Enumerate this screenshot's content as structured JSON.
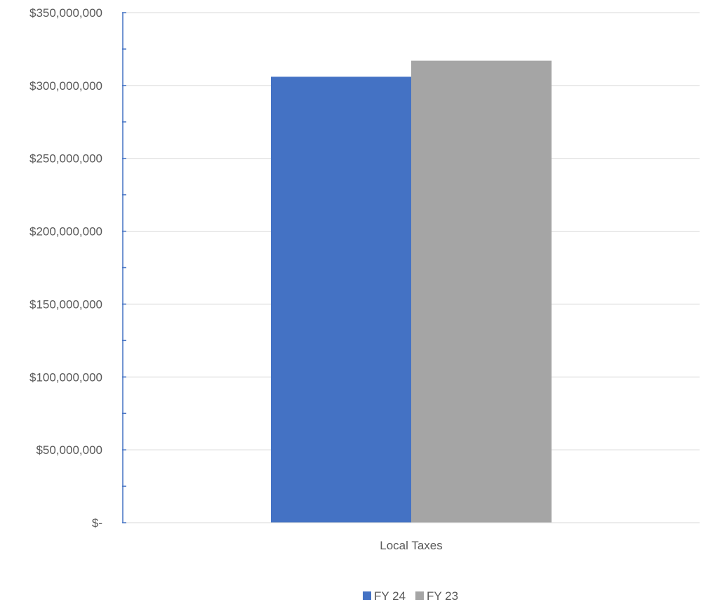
{
  "chart_data": {
    "type": "bar",
    "categories": [
      "Local Taxes"
    ],
    "series": [
      {
        "name": "FY 24",
        "values": [
          306000000
        ],
        "color": "#4472C4"
      },
      {
        "name": "FY 23",
        "values": [
          317000000
        ],
        "color": "#A5A5A5"
      }
    ],
    "ylim": [
      0,
      350000000
    ],
    "y_major_step": 50000000,
    "y_minor_step": 25000000,
    "y_tick_labels": [
      "$-",
      "$50,000,000",
      "$100,000,000",
      "$150,000,000",
      "$200,000,000",
      "$250,000,000",
      "$300,000,000",
      "$350,000,000"
    ],
    "grid": true,
    "legend_position": "bottom",
    "axis_color": "#4472C4",
    "grid_color": "#D9D9D9"
  }
}
